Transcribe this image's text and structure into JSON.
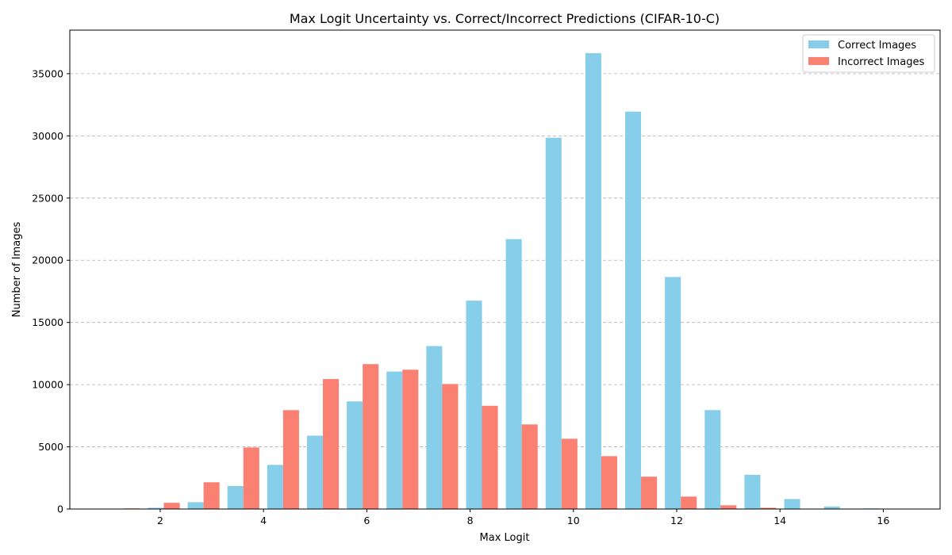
{
  "chart_data": {
    "type": "bar",
    "title": "Max Logit Uncertainty vs. Correct/Incorrect Predictions (CIFAR-10-C)",
    "xlabel": "Max Logit",
    "ylabel": "Number of Images",
    "xlim": [
      0.25,
      17.1
    ],
    "ylim": [
      0,
      38500
    ],
    "xticks": [
      2,
      4,
      6,
      8,
      10,
      12,
      14,
      16
    ],
    "yticks": [
      0,
      5000,
      10000,
      15000,
      20000,
      25000,
      30000,
      35000
    ],
    "grid": "y-dashed",
    "legend_position": "upper-right",
    "bin_centers": [
      1.3,
      2.07,
      2.84,
      3.61,
      4.38,
      5.15,
      5.92,
      6.69,
      7.46,
      8.23,
      9.0,
      9.77,
      10.54,
      11.31,
      12.08,
      12.85,
      13.62,
      14.39,
      15.16,
      15.93
    ],
    "series": [
      {
        "name": "Correct Images",
        "color": "#87CEEB",
        "values": [
          0,
          100,
          550,
          1850,
          3550,
          5900,
          8650,
          11050,
          13100,
          16750,
          21700,
          29850,
          36650,
          31950,
          18650,
          7950,
          2750,
          800,
          200,
          50
        ]
      },
      {
        "name": "Incorrect Images",
        "color": "#FA8072",
        "values": [
          50,
          500,
          2150,
          4950,
          7950,
          10450,
          11650,
          11200,
          10050,
          8300,
          6800,
          5650,
          4250,
          2600,
          1000,
          300,
          100,
          30,
          0,
          0
        ]
      }
    ]
  }
}
